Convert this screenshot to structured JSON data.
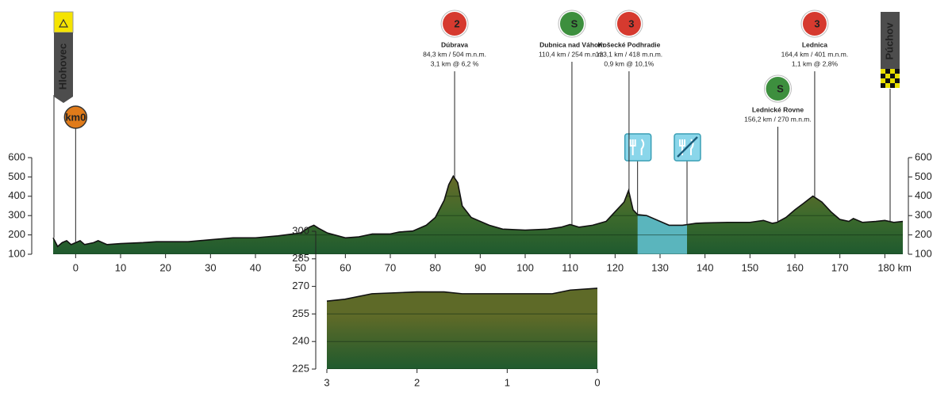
{
  "chart_data": [
    {
      "type": "area",
      "start": {
        "label": "Hlohovec",
        "color": "#f5e400"
      },
      "finish": {
        "label": "Púchov"
      },
      "km0": {
        "label": "km0",
        "x": 0,
        "color": "#e07b1a"
      },
      "x": [
        -5,
        -4,
        -3,
        -2,
        -1,
        0,
        1,
        2,
        4,
        5,
        7,
        10,
        15,
        18,
        20,
        25,
        30,
        35,
        40,
        45,
        50,
        52,
        53,
        54,
        56,
        60,
        63,
        66,
        70,
        72,
        75,
        78,
        80,
        82,
        83,
        84,
        85,
        86,
        88,
        90,
        92,
        95,
        100,
        105,
        108,
        110,
        112,
        115,
        118,
        120,
        122,
        123,
        124,
        125,
        127,
        130,
        132,
        135,
        138,
        140,
        145,
        150,
        153,
        155,
        156,
        158,
        160,
        162,
        164,
        166,
        168,
        170,
        172,
        173,
        175,
        178,
        180,
        182,
        184
      ],
      "values": [
        185,
        140,
        160,
        170,
        150,
        160,
        170,
        150,
        160,
        170,
        150,
        155,
        160,
        165,
        165,
        165,
        175,
        185,
        185,
        195,
        210,
        240,
        250,
        235,
        210,
        185,
        190,
        205,
        205,
        215,
        220,
        250,
        290,
        380,
        460,
        504,
        470,
        350,
        290,
        270,
        250,
        230,
        225,
        230,
        240,
        254,
        240,
        250,
        270,
        320,
        370,
        430,
        330,
        305,
        300,
        270,
        250,
        250,
        260,
        262,
        265,
        265,
        275,
        260,
        265,
        290,
        330,
        365,
        401,
        370,
        320,
        280,
        270,
        285,
        265,
        270,
        275,
        265,
        270
      ],
      "feed_zone": [
        125,
        136
      ],
      "feed_color": "#5ab5bd",
      "xlim": [
        -5,
        184
      ],
      "xticks": [
        0,
        10,
        20,
        30,
        40,
        50,
        60,
        70,
        80,
        90,
        100,
        110,
        120,
        130,
        140,
        150,
        160,
        170,
        {
          "value": 180,
          "label": "180 km"
        }
      ],
      "ylim": [
        100,
        600
      ],
      "yticks": [
        100,
        200,
        300,
        400,
        500,
        600
      ],
      "annotations": [
        {
          "x": 84.3,
          "badge": "2",
          "color": "#d63a2f",
          "name": "Dúbrava",
          "lines": [
            "84,3 km / 504 m.n.m.",
            "3,1 km @ 6,2 %"
          ]
        },
        {
          "x": 110.4,
          "badge": "S",
          "color": "#3d8f3e",
          "name": "Dubnica nad Váhom",
          "lines": [
            "110,4 km / 254 m.n.m."
          ]
        },
        {
          "x": 123.1,
          "badge": "3",
          "color": "#d63a2f",
          "name": "Košecké Podhradie",
          "lines": [
            "123,1 km / 418 m.n.m.",
            "0,9 km @ 10,1%"
          ]
        },
        {
          "x": 156.2,
          "badge": "S",
          "color": "#3d8f3e",
          "name": "Lednické Rovne",
          "lines": [
            "156,2 km / 270 m.n.m."
          ]
        },
        {
          "x": 164.4,
          "badge": "3",
          "color": "#d63a2f",
          "name": "Lednica",
          "lines": [
            "164,4 km / 401 m.n.m.",
            "1,1 km @ 2,8%"
          ]
        }
      ]
    },
    {
      "type": "area",
      "x": [
        3,
        2.8,
        2.5,
        2,
        1.7,
        1.5,
        1,
        0.5,
        0.3,
        0
      ],
      "values": [
        262,
        263,
        266,
        267,
        267,
        266,
        266,
        266,
        268,
        269
      ],
      "xlim": [
        3,
        0
      ],
      "xticks": [
        3,
        2,
        1,
        0
      ],
      "ylim": [
        225,
        300
      ],
      "yticks": [
        225,
        240,
        255,
        270,
        285,
        300
      ]
    }
  ]
}
